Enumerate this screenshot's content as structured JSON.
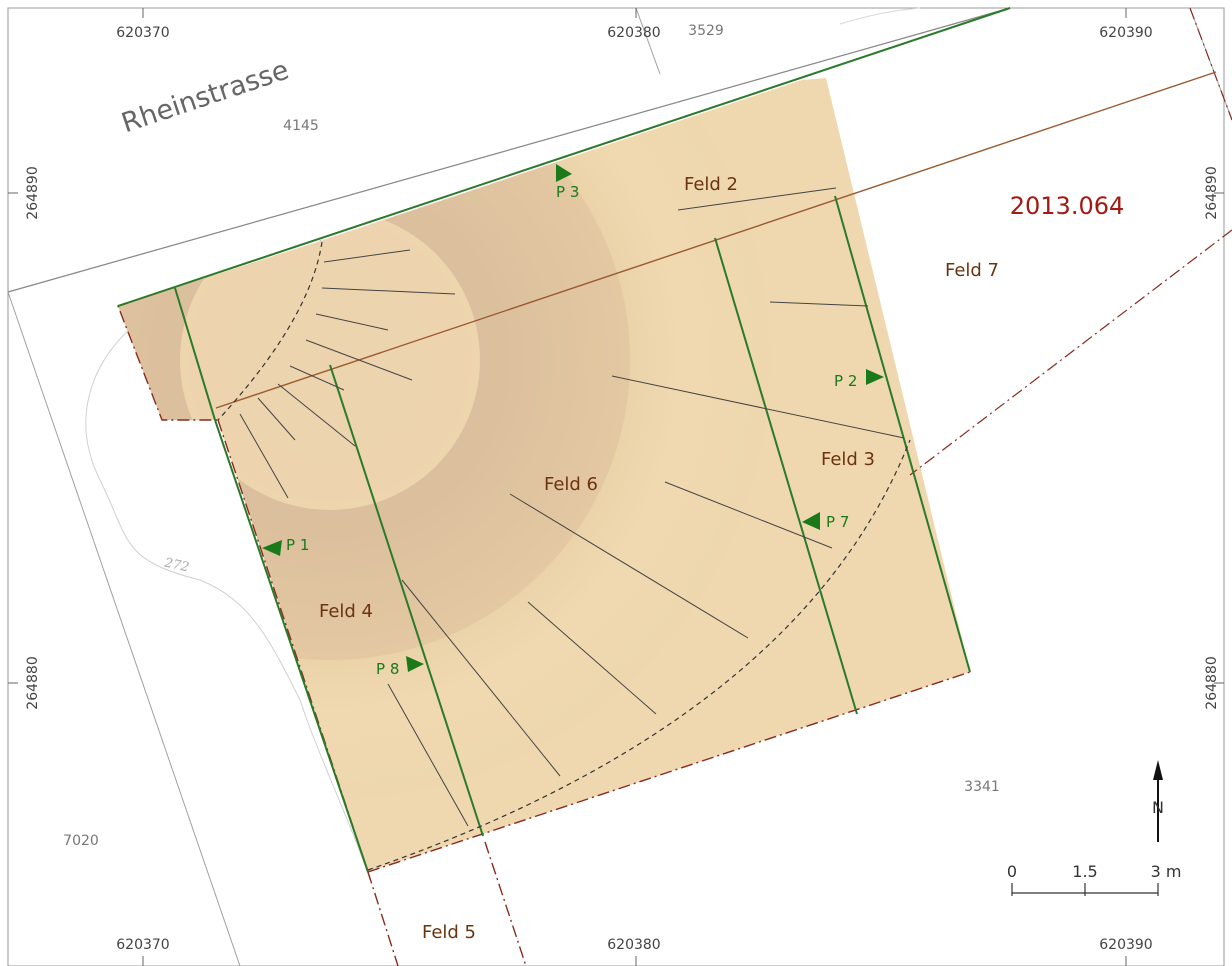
{
  "site_number": "2013.064",
  "street_name": "Rheinstrasse",
  "coords": {
    "x_top": [
      "620370",
      "620380",
      "620390"
    ],
    "x_bottom": [
      "620370",
      "620380",
      "620390"
    ],
    "y_left": [
      "264890",
      "264880"
    ],
    "y_right": [
      "264890",
      "264880"
    ]
  },
  "parcels": [
    "3529",
    "4145",
    "3341",
    "7020"
  ],
  "contour_label": "272",
  "fields": [
    "Feld 2",
    "Feld 3",
    "Feld 4",
    "Feld 5",
    "Feld 6",
    "Feld 7"
  ],
  "profiles": [
    "P 1",
    "P 2",
    "P 3",
    "P 7",
    "P 8"
  ],
  "north_label": "N",
  "scale": {
    "labels": [
      "0",
      "1.5",
      "3 m"
    ]
  },
  "colors": {
    "excavation_fill": "#efd8b0",
    "field_boundary": "#2a7a2a",
    "excavation_outline": "#8a2a20",
    "site_number": "#a41a12",
    "field_label": "#6b3410"
  }
}
